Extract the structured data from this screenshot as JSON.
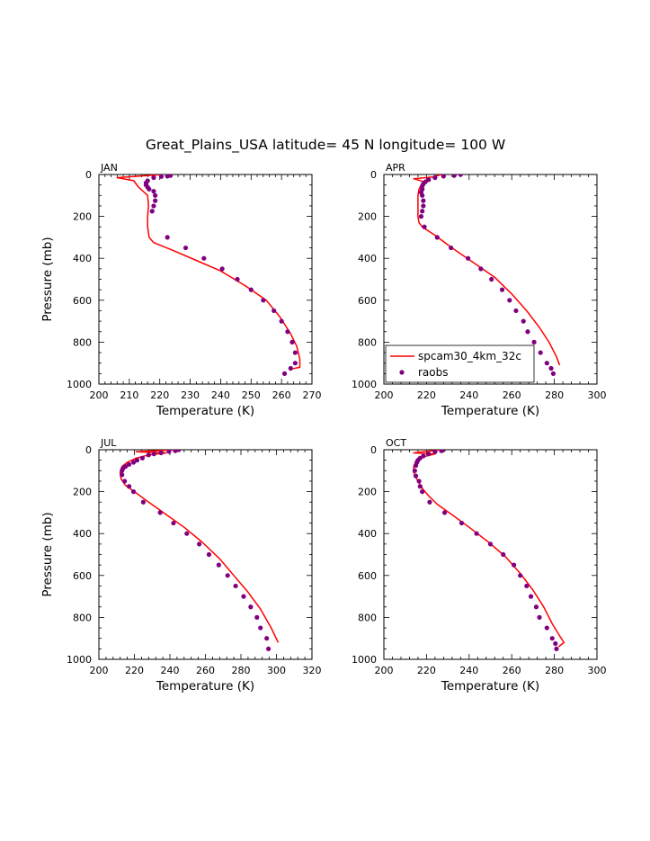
{
  "title": "Great_Plains_USA  latitude= 45 N longitude= 100 W",
  "legend": {
    "entries": [
      {
        "label": "spcam30_4km_32c",
        "style": "line",
        "color": "#ff0000"
      },
      {
        "label": "raobs",
        "style": "marker",
        "color": "#800080"
      }
    ]
  },
  "colors": {
    "model_line": "#ff0000",
    "obs_marker": "#800080"
  },
  "chart_data": [
    {
      "type": "line",
      "panel_label": "JAN",
      "xlabel": "Temperature (K)",
      "ylabel": "Pressure (mb)",
      "xlim": [
        200,
        270
      ],
      "ylim": [
        1000,
        0
      ],
      "y_inverted": true,
      "xticks": [
        200,
        210,
        220,
        230,
        240,
        250,
        260,
        270
      ],
      "yticks": [
        0,
        200,
        400,
        600,
        800,
        1000
      ],
      "series": [
        {
          "name": "spcam30_4km_32c",
          "style": "line",
          "x": [
            221.0,
            206.0,
            211.5,
            213.0,
            214.5,
            216.0,
            216.3,
            216.0,
            216.0,
            216.5,
            218.0,
            224.0,
            232.0,
            240.0,
            248.0,
            255.0,
            259.5,
            263.0,
            265.0,
            266.0,
            266.0,
            262.5
          ],
          "y": [
            0,
            15,
            30,
            60,
            80,
            100,
            150,
            200,
            250,
            300,
            325,
            360,
            410,
            460,
            530,
            600,
            680,
            760,
            820,
            880,
            920,
            930
          ]
        },
        {
          "name": "raobs",
          "style": "marker",
          "x": [
            223.5,
            222.5,
            220.5,
            218.0,
            216.0,
            215.5,
            215.5,
            216.0,
            216.5,
            218.0,
            218.5,
            218.5,
            218.0,
            217.5,
            222.5,
            228.5,
            234.5,
            240.5,
            245.5,
            250.0,
            254.0,
            257.5,
            260.0,
            262.0,
            263.5,
            264.5,
            264.5,
            263.0,
            261.0
          ],
          "y": [
            5,
            8,
            10,
            15,
            30,
            40,
            50,
            60,
            70,
            80,
            100,
            125,
            150,
            175,
            300,
            350,
            400,
            450,
            500,
            550,
            600,
            650,
            700,
            750,
            800,
            850,
            900,
            925,
            950
          ]
        }
      ]
    },
    {
      "type": "line",
      "panel_label": "APR",
      "xlabel": "Temperature (K)",
      "ylabel": "",
      "xlim": [
        200,
        300
      ],
      "ylim": [
        1000,
        0
      ],
      "y_inverted": true,
      "xticks": [
        200,
        220,
        240,
        260,
        280,
        300
      ],
      "yticks": [
        0,
        200,
        400,
        600,
        800,
        1000
      ],
      "series": [
        {
          "name": "spcam30_4km_32c",
          "style": "line",
          "x": [
            227.0,
            223.0,
            214.0,
            219.0,
            217.5,
            216.5,
            216.0,
            216.0,
            216.0,
            216.5,
            218.0,
            224.0,
            232.0,
            242.0,
            252.0,
            260.0,
            267.0,
            273.0,
            277.5,
            281.0,
            282.5
          ],
          "y": [
            0,
            12,
            20,
            35,
            50,
            70,
            100,
            150,
            200,
            230,
            250,
            290,
            350,
            420,
            490,
            570,
            650,
            730,
            800,
            870,
            910
          ]
        },
        {
          "name": "raobs",
          "style": "marker",
          "x": [
            236.0,
            233.0,
            228.0,
            224.0,
            221.0,
            219.5,
            218.5,
            218.0,
            218.0,
            217.5,
            218.0,
            218.5,
            218.5,
            218.0,
            217.5,
            219.0,
            225.0,
            231.5,
            239.5,
            245.5,
            250.5,
            255.5,
            259.0,
            262.0,
            265.5,
            267.5,
            270.5,
            273.5,
            276.5,
            278.5,
            279.5
          ],
          "y": [
            0,
            5,
            8,
            15,
            25,
            35,
            45,
            55,
            70,
            85,
            100,
            125,
            150,
            175,
            200,
            250,
            300,
            350,
            400,
            450,
            500,
            550,
            600,
            650,
            700,
            750,
            800,
            850,
            900,
            925,
            950
          ]
        }
      ]
    },
    {
      "type": "line",
      "panel_label": "JUL",
      "xlabel": "Temperature (K)",
      "ylabel": "Pressure (mb)",
      "xlim": [
        200,
        320
      ],
      "ylim": [
        1000,
        0
      ],
      "y_inverted": true,
      "xticks": [
        200,
        220,
        240,
        260,
        280,
        300,
        320
      ],
      "yticks": [
        0,
        200,
        400,
        600,
        800,
        1000
      ],
      "series": [
        {
          "name": "spcam30_4km_32c",
          "style": "line",
          "x": [
            243.0,
            221.0,
            238.0,
            228.0,
            221.0,
            216.0,
            213.0,
            212.0,
            212.5,
            215.0,
            220.0,
            228.0,
            238.0,
            248.0,
            258.0,
            268.0,
            276.0,
            284.0,
            291.0,
            297.0,
            301.0
          ],
          "y": [
            0,
            10,
            15,
            25,
            40,
            60,
            80,
            110,
            140,
            170,
            200,
            250,
            310,
            370,
            440,
            520,
            600,
            680,
            760,
            850,
            920
          ]
        },
        {
          "name": "raobs",
          "style": "marker",
          "x": [
            245.0,
            243.0,
            239.5,
            235.0,
            231.0,
            228.0,
            224.5,
            221.5,
            219.5,
            217.0,
            215.0,
            213.5,
            213.0,
            213.0,
            214.5,
            217.0,
            219.5,
            225.0,
            234.5,
            242.0,
            249.5,
            256.5,
            262.0,
            267.5,
            272.5,
            277.0,
            281.5,
            285.5,
            289.0,
            291.0,
            294.5,
            295.5
          ],
          "y": [
            0,
            5,
            8,
            15,
            20,
            25,
            40,
            50,
            60,
            70,
            80,
            90,
            100,
            120,
            150,
            175,
            200,
            250,
            300,
            350,
            400,
            450,
            500,
            550,
            600,
            650,
            700,
            750,
            800,
            850,
            900,
            950
          ]
        }
      ]
    },
    {
      "type": "line",
      "panel_label": "OCT",
      "xlabel": "Temperature (K)",
      "ylabel": "",
      "xlim": [
        200,
        300
      ],
      "ylim": [
        1000,
        0
      ],
      "y_inverted": true,
      "xticks": [
        200,
        220,
        240,
        260,
        280,
        300
      ],
      "yticks": [
        0,
        200,
        400,
        600,
        800,
        1000
      ],
      "series": [
        {
          "name": "spcam30_4km_32c",
          "style": "line",
          "x": [
            227.0,
            214.0,
            224.0,
            218.0,
            215.0,
            214.0,
            214.0,
            216.0,
            218.5,
            221.0,
            225.0,
            232.0,
            240.0,
            249.0,
            257.0,
            264.0,
            270.0,
            275.0,
            279.0,
            282.0,
            284.5,
            282.0
          ],
          "y": [
            0,
            15,
            20,
            35,
            55,
            80,
            110,
            150,
            190,
            220,
            260,
            310,
            370,
            440,
            510,
            590,
            670,
            750,
            830,
            880,
            920,
            940
          ]
        },
        {
          "name": "raobs",
          "style": "marker",
          "x": [
            228.0,
            227.0,
            224.0,
            221.0,
            218.5,
            217.0,
            216.0,
            215.5,
            215.0,
            214.5,
            215.0,
            216.5,
            217.0,
            218.0,
            221.5,
            228.5,
            236.5,
            243.5,
            250.0,
            256.0,
            261.0,
            264.0,
            267.0,
            269.0,
            271.5,
            273.0,
            276.5,
            279.0,
            280.5,
            281.0
          ],
          "y": [
            0,
            5,
            10,
            20,
            30,
            40,
            50,
            60,
            75,
            100,
            125,
            150,
            175,
            200,
            250,
            300,
            350,
            400,
            450,
            500,
            550,
            600,
            650,
            700,
            750,
            800,
            850,
            900,
            925,
            950
          ]
        }
      ]
    }
  ]
}
